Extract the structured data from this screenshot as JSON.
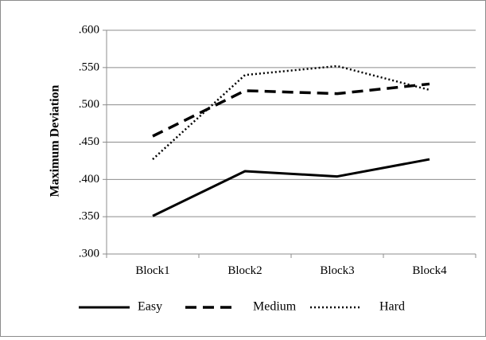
{
  "chart_data": {
    "type": "line",
    "title": "",
    "xlabel": "",
    "ylabel": "Maximum Deviation",
    "categories": [
      "Block1",
      "Block2",
      "Block3",
      "Block4"
    ],
    "ylim": [
      0.3,
      0.6
    ],
    "yticks": [
      ".300",
      ".350",
      ".400",
      ".450",
      ".500",
      ".550",
      ".600"
    ],
    "ytick_values": [
      0.3,
      0.35,
      0.4,
      0.45,
      0.5,
      0.55,
      0.6
    ],
    "grid": true,
    "legend_position": "bottom",
    "series": [
      {
        "name": "Easy",
        "values": [
          0.351,
          0.411,
          0.404,
          0.427
        ],
        "color": "#000000",
        "style": "solid"
      },
      {
        "name": "Medium",
        "values": [
          0.458,
          0.519,
          0.515,
          0.528
        ],
        "color": "#000000",
        "style": "dashed"
      },
      {
        "name": "Hard",
        "values": [
          0.427,
          0.54,
          0.552,
          0.52
        ],
        "color": "#000000",
        "style": "dotted"
      }
    ]
  }
}
